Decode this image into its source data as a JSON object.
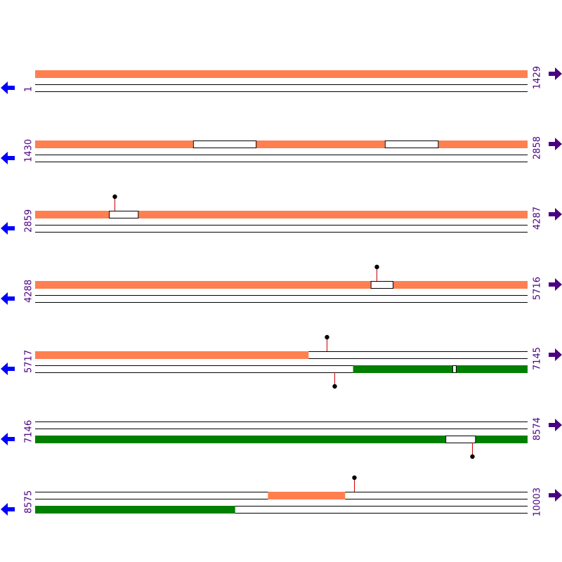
{
  "colors": {
    "forward_feature": "#ff7f50",
    "reverse_feature": "#008000",
    "marker_stem": "#cc0000",
    "marker_head": "#000000",
    "position_text": "#4b0082",
    "left_arrow": "#0000ff",
    "right_arrow": "#4b0082",
    "track_line": "#000000"
  },
  "icons": {
    "left": "arrow-left",
    "right": "arrow-right"
  },
  "rows": [
    {
      "start": 1,
      "end": 1429,
      "start_label": "1",
      "end_label": "1429",
      "forward_segments": [
        [
          1,
          1429
        ]
      ],
      "forward_gaps": [],
      "reverse_segments": [],
      "reverse_gaps": [],
      "markers": []
    },
    {
      "start": 1430,
      "end": 2858,
      "start_label": "1430",
      "end_label": "2858",
      "forward_segments": [
        [
          1430,
          1888
        ],
        [
          2070,
          2444
        ],
        [
          2598,
          2858
        ]
      ],
      "forward_gaps": [
        [
          1888,
          2070
        ],
        [
          2444,
          2598
        ]
      ],
      "reverse_segments": [],
      "reverse_gaps": [],
      "markers": []
    },
    {
      "start": 2859,
      "end": 4287,
      "start_label": "2859",
      "end_label": "4287",
      "forward_segments": [
        [
          2859,
          3073
        ],
        [
          3157,
          4287
        ]
      ],
      "forward_gaps": [
        [
          3073,
          3157
        ]
      ],
      "reverse_segments": [],
      "reverse_gaps": [],
      "markers": [
        {
          "pos": 3090,
          "strand": "forward"
        }
      ]
    },
    {
      "start": 4288,
      "end": 5716,
      "start_label": "4288",
      "end_label": "5716",
      "forward_segments": [
        [
          4288,
          5261
        ],
        [
          5325,
          5716
        ]
      ],
      "forward_gaps": [
        [
          5261,
          5325
        ]
      ],
      "reverse_segments": [],
      "reverse_gaps": [],
      "markers": [
        {
          "pos": 5278,
          "strand": "forward"
        }
      ]
    },
    {
      "start": 5717,
      "end": 7145,
      "start_label": "5717",
      "end_label": "7145",
      "forward_segments": [
        [
          5717,
          6510
        ]
      ],
      "forward_gaps": [],
      "reverse_segments": [
        [
          6639,
          6927
        ],
        [
          6937,
          7145
        ]
      ],
      "reverse_gaps": [
        [
          6927,
          6937
        ]
      ],
      "markers": [
        {
          "pos": 6563,
          "strand": "forward"
        },
        {
          "pos": 6584,
          "strand": "reverse"
        }
      ]
    },
    {
      "start": 7146,
      "end": 8574,
      "start_label": "7146",
      "end_label": "8574",
      "forward_segments": [],
      "forward_gaps": [],
      "reverse_segments": [
        [
          7146,
          8336
        ],
        [
          8422,
          8574
        ]
      ],
      "reverse_gaps": [
        [
          8336,
          8422
        ]
      ],
      "markers": [
        {
          "pos": 8414,
          "strand": "reverse"
        }
      ]
    },
    {
      "start": 8575,
      "end": 10003,
      "start_label": "8575",
      "end_label": "10003",
      "forward_segments": [
        [
          9250,
          9474
        ]
      ],
      "forward_gaps": [],
      "reverse_segments": [
        [
          8575,
          9155
        ]
      ],
      "reverse_gaps": [],
      "markers": [
        {
          "pos": 9499,
          "strand": "forward"
        }
      ]
    }
  ]
}
